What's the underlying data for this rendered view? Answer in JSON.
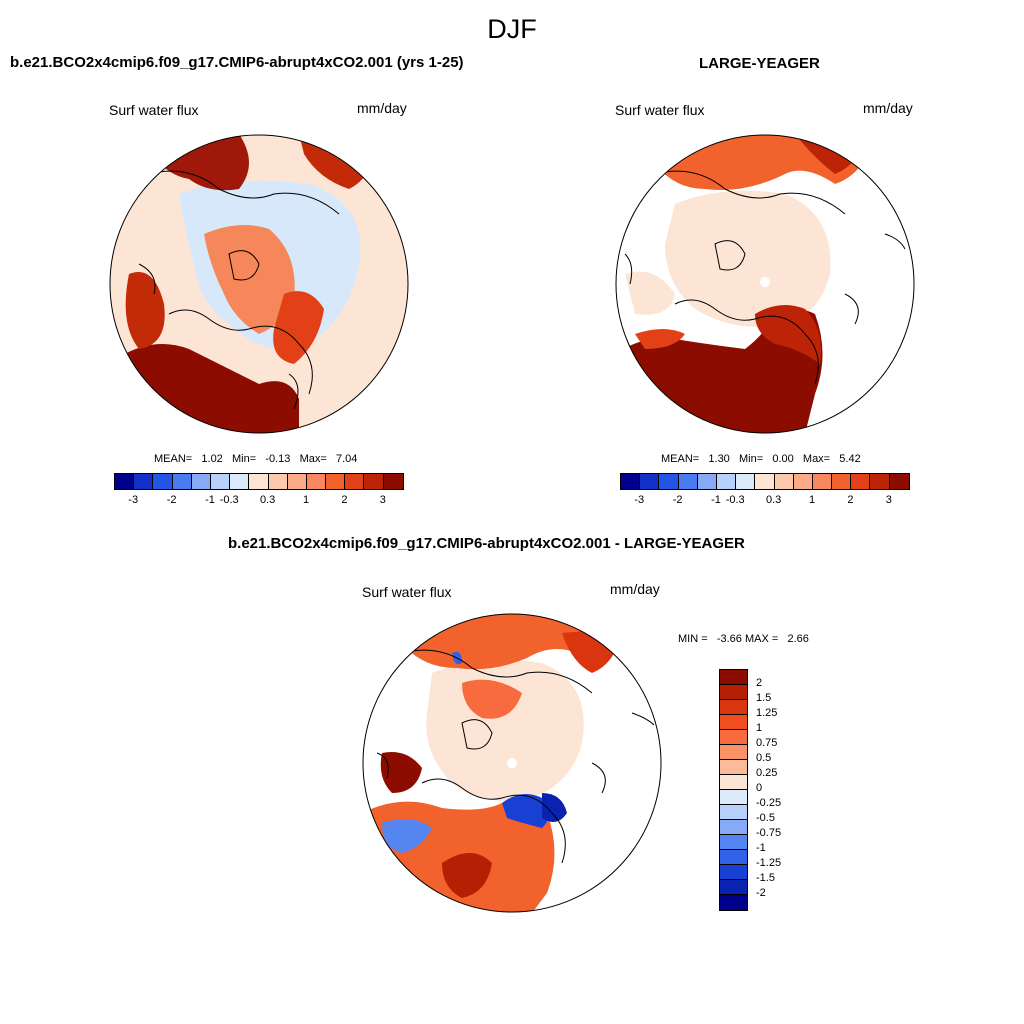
{
  "figure": {
    "title": "DJF"
  },
  "panel1": {
    "title": "b.e21.BCO2x4cmip6.f09_g17.CMIP6-abrupt4xCO2.001 (yrs 1-25)",
    "variable": "Surf water flux",
    "units": "mm/day",
    "mean_label": "MEAN=",
    "mean": "1.02",
    "min_label": "Min=",
    "min": "-0.13",
    "max_label": "Max=",
    "max": "7.04"
  },
  "panel2": {
    "title": "LARGE-YEAGER",
    "variable": "Surf water flux",
    "units": "mm/day",
    "mean_label": "MEAN=",
    "mean": "1.30",
    "min_label": "Min=",
    "min": "0.00",
    "max_label": "Max=",
    "max": "5.42"
  },
  "panel3": {
    "title": "b.e21.BCO2x4cmip6.f09_g17.CMIP6-abrupt4xCO2.001 - LARGE-YEAGER",
    "variable": "Surf water flux",
    "units": "mm/day",
    "min_label": "MIN =",
    "min": "-3.66",
    "max_label": "MAX =",
    "max": "2.66"
  },
  "colorbar_abs": {
    "ticks": [
      "-3",
      "-2",
      "-1",
      "-0.3",
      "0.3",
      "1",
      "2",
      "3"
    ],
    "colors": [
      "#00008c",
      "#1030c8",
      "#2255e6",
      "#4a7cf0",
      "#86aaf5",
      "#b8d1fa",
      "#dcebfc",
      "#fde5d6",
      "#fcc9ad",
      "#fbab88",
      "#f88860",
      "#f2622d",
      "#e24016",
      "#bd2306",
      "#8c0c00"
    ]
  },
  "colorbar_diff": {
    "labels": [
      "2",
      "1.5",
      "1.25",
      "1",
      "0.75",
      "0.5",
      "0.25",
      "0",
      "-0.25",
      "-0.5",
      "-0.75",
      "-1",
      "-1.25",
      "-1.5",
      "-2"
    ],
    "colors": [
      "#8c0c00",
      "#b52004",
      "#d9350e",
      "#f04e20",
      "#f76b3e",
      "#fa9268",
      "#fcbb98",
      "#fde5d6",
      "#dcebfc",
      "#b8d1fa",
      "#86aaf5",
      "#5585f0",
      "#2f62e6",
      "#1840d2",
      "#0a22b0",
      "#00008c"
    ]
  }
}
